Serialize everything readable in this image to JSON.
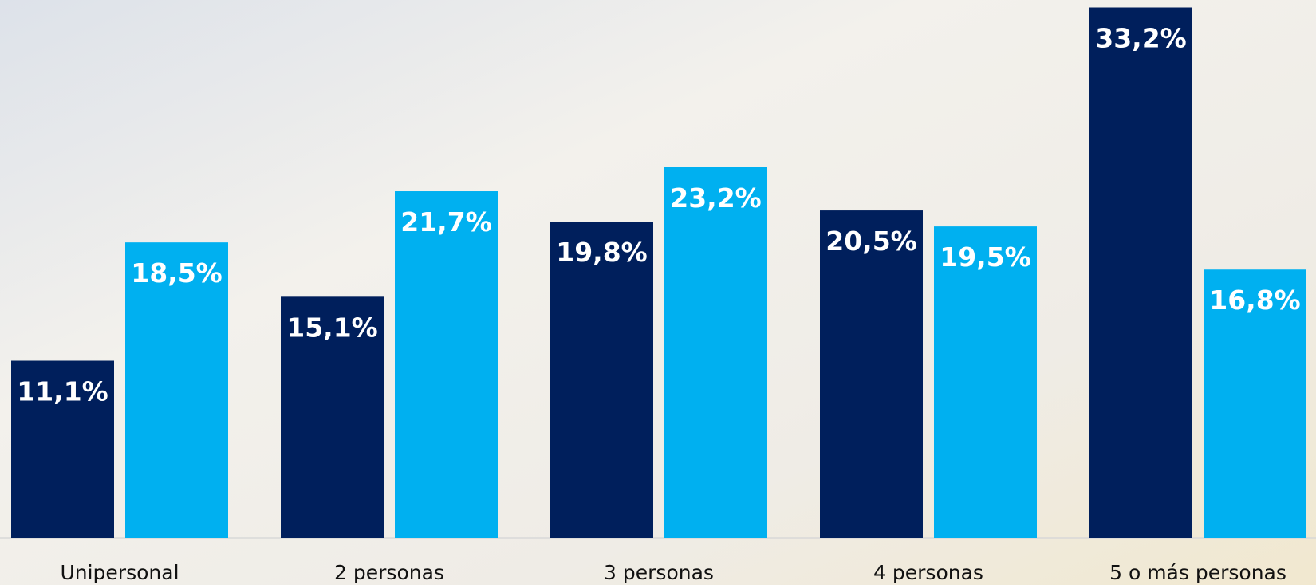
{
  "chart_data": {
    "type": "bar",
    "categories": [
      "Unipersonal",
      "2 personas",
      "3 personas",
      "4 personas",
      "5 o más personas"
    ],
    "series": [
      {
        "color": "#001f5c",
        "values": [
          11.1,
          15.1,
          19.8,
          20.5,
          33.2
        ],
        "value_labels": [
          "11,1%",
          "15,1%",
          "19,8%",
          "20,5%",
          "33,2%"
        ]
      },
      {
        "color": "#00b0f0",
        "values": [
          18.5,
          21.7,
          23.2,
          19.5,
          16.8
        ],
        "value_labels": [
          "18,5%",
          "21,7%",
          "23,2%",
          "19,5%",
          "16,8%"
        ]
      }
    ]
  }
}
